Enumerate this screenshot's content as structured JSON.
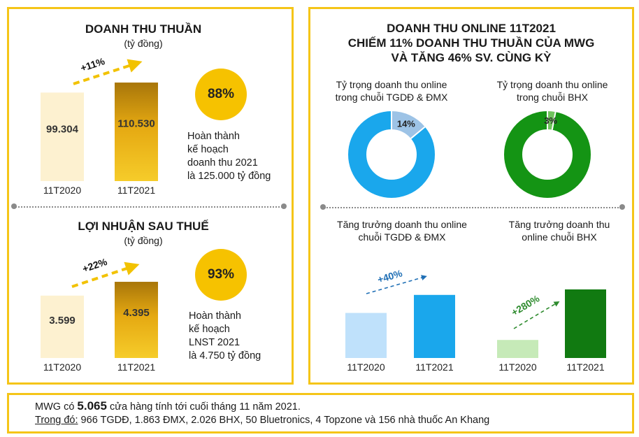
{
  "left": {
    "revenue": {
      "title": "DOANH THU THUẦN",
      "unit": "(tỷ đồng)",
      "growth": "+11%",
      "completion": "88%",
      "note": [
        "Hoàn thành",
        "kế hoạch",
        "doanh thu 2021",
        "là 125.000 tỷ đồng"
      ]
    },
    "profit": {
      "title": "LỢI NHUẬN SAU THUẾ",
      "unit": "(tỷ đồng)",
      "growth": "+22%",
      "completion": "93%",
      "note": [
        "Hoàn thành",
        "kế hoạch",
        "LNST 2021",
        "là 4.750 tỷ đồng"
      ]
    }
  },
  "right": {
    "title_lines": [
      "DOANH THU ONLINE 11T2021",
      "CHIẾM 11% DOANH THU THUẦN CỦA MWG",
      "VÀ TĂNG 46% SV. CÙNG KỲ"
    ],
    "pie_tgdd_caption": [
      "Tỷ trọng doanh thu online",
      "trong chuỗi TGDĐ & ĐMX"
    ],
    "pie_bhx_caption": [
      "Tỷ trọng doanh thu online",
      "trong chuỗi BHX"
    ],
    "growth_tgdd_caption": [
      "Tăng trưởng doanh thu online",
      "chuỗi TGDĐ & ĐMX"
    ],
    "growth_bhx_caption": [
      "Tăng trưởng doanh thu",
      "online chuỗi BHX"
    ],
    "growth_tgdd": "+40%",
    "growth_bhx": "+280%"
  },
  "footer": {
    "line1_prefix": "MWG có ",
    "line1_number": "5.065",
    "line1_suffix": " cửa hàng tính tới cuối tháng 11 năm 2021.",
    "line2_label": "Trong đó:",
    "line2_text": " 966 TGDĐ, 1.863 ĐMX, 2.026 BHX, 50 Bluetronics, 4 Topzone và 156 nhà thuốc An Khang"
  },
  "chart_data": [
    {
      "type": "bar",
      "title": "DOANH THU THUẦN",
      "categories": [
        "11T2020",
        "11T2021"
      ],
      "values": [
        99304,
        110530
      ],
      "value_labels": [
        "99.304",
        "110.530"
      ],
      "ylabel": "(tỷ đồng)",
      "ylim": [
        0,
        120000
      ],
      "colors": [
        "#fdf1d0",
        "#e9ad10"
      ]
    },
    {
      "type": "bar",
      "title": "LỢI NHUẬN SAU THUẾ",
      "categories": [
        "11T2020",
        "11T2021"
      ],
      "values": [
        3599,
        4395
      ],
      "value_labels": [
        "3.599",
        "4.395"
      ],
      "ylabel": "(tỷ đồng)",
      "ylim": [
        0,
        4800
      ],
      "colors": [
        "#fdf1d0",
        "#e9ad10"
      ]
    },
    {
      "type": "pie",
      "donut": true,
      "slices": [
        {
          "label": "14%",
          "value": 14,
          "color": "#9dc3e6"
        },
        {
          "value": 86,
          "color": "#1aa7ec"
        }
      ]
    },
    {
      "type": "pie",
      "donut": true,
      "slices": [
        {
          "label": "3%",
          "value": 3,
          "color": "#70c45e"
        },
        {
          "value": 97,
          "color": "#149414"
        }
      ]
    },
    {
      "type": "bar",
      "categories": [
        "11T2020",
        "11T2021"
      ],
      "values": [
        100,
        140
      ],
      "ylim": [
        0,
        180
      ],
      "colors": [
        "#bfe1fb",
        "#1aa7ec"
      ]
    },
    {
      "type": "bar",
      "categories": [
        "11T2020",
        "11T2021"
      ],
      "values": [
        100,
        380
      ],
      "ylim": [
        0,
        430
      ],
      "colors": [
        "#c6eab8",
        "#117a11"
      ]
    }
  ]
}
